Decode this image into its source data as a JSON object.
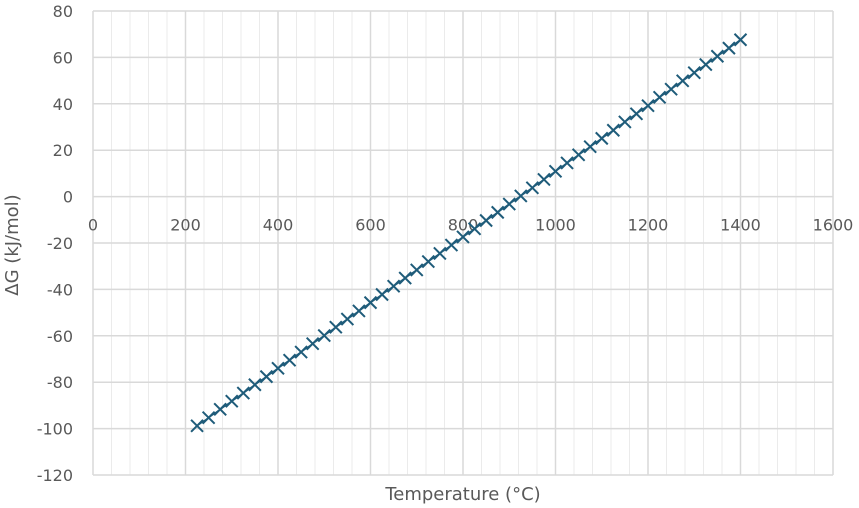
{
  "chart_data": {
    "type": "scatter",
    "title": "",
    "xlabel": "Temperature (°C)",
    "ylabel": "ΔG (kJ/mol)",
    "xlim": [
      0,
      1600
    ],
    "ylim": [
      -120,
      80
    ],
    "x_major_step": 200,
    "x_minor_step": 40,
    "y_major_step": 20,
    "x_tick_labels": [
      "0",
      "200",
      "400",
      "600",
      "800",
      "1000",
      "1200",
      "1400",
      "1600"
    ],
    "y_tick_labels": [
      "80",
      "60",
      "40",
      "20",
      "0",
      "-20",
      "-40",
      "-60",
      "-80",
      "-100",
      "-120"
    ],
    "grid": true,
    "legend": "none",
    "marker": "x",
    "series_color": "#1F5C7A",
    "grid_color_major": "#D9D9D9",
    "grid_color_minor": "#EBEBEB",
    "series": [
      {
        "x": [
          225,
          250,
          275,
          300,
          325,
          350,
          375,
          400,
          425,
          450,
          475,
          500,
          525,
          550,
          575,
          600,
          625,
          650,
          675,
          700,
          725,
          750,
          775,
          800,
          825,
          850,
          875,
          900,
          925,
          950,
          975,
          1000,
          1025,
          1050,
          1075,
          1100,
          1125,
          1150,
          1175,
          1200,
          1225,
          1250,
          1275,
          1300,
          1325,
          1350,
          1375,
          1400
        ],
        "y": [
          -98.8,
          -95.3,
          -91.7,
          -88.2,
          -84.7,
          -81.1,
          -77.6,
          -74.0,
          -70.5,
          -67.0,
          -63.4,
          -59.9,
          -56.3,
          -52.8,
          -49.3,
          -45.7,
          -42.2,
          -38.6,
          -35.1,
          -31.6,
          -28.0,
          -24.5,
          -20.9,
          -17.4,
          -13.9,
          -10.3,
          -6.8,
          -3.2,
          0.3,
          3.8,
          7.4,
          10.9,
          14.5,
          18.0,
          21.5,
          25.1,
          28.6,
          32.2,
          35.7,
          39.2,
          42.8,
          46.3,
          49.9,
          53.4,
          56.9,
          60.5,
          64.0,
          67.6
        ]
      }
    ]
  }
}
